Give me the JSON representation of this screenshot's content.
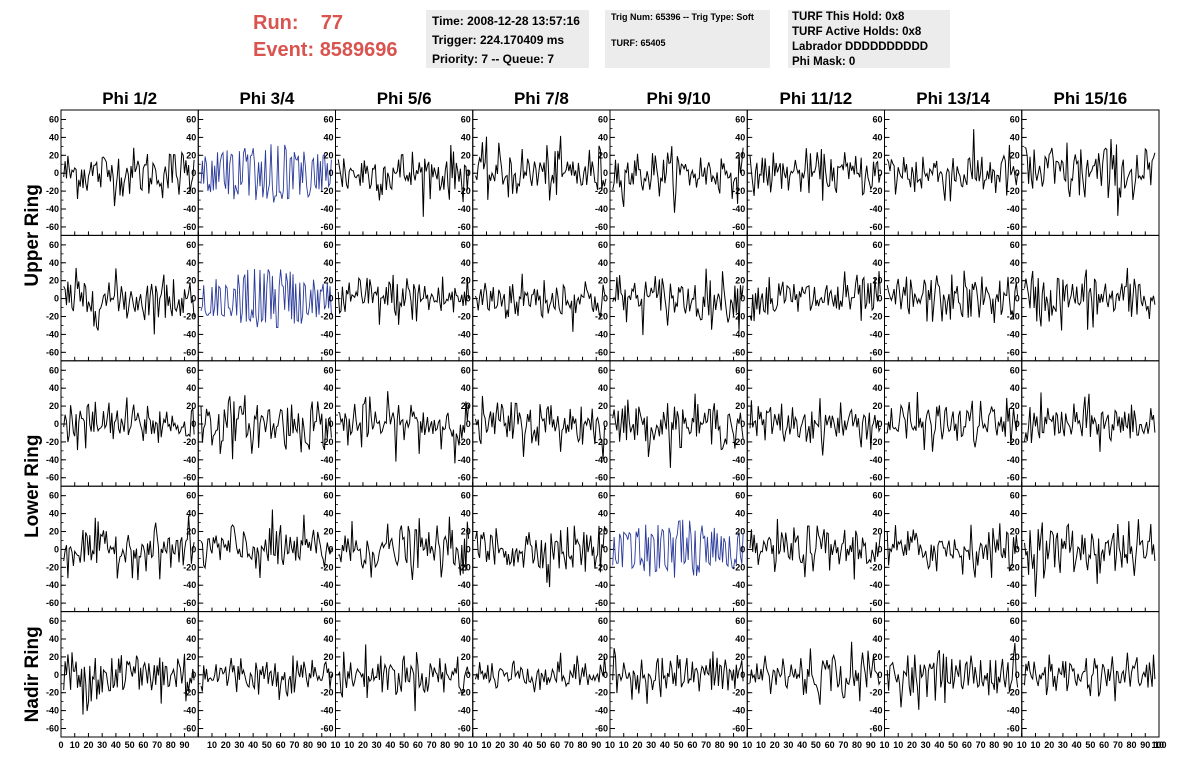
{
  "header": {
    "run_label": "Run:",
    "run_value": "77",
    "event_label": "Event:",
    "event_value": "8589696",
    "time": "Time: 2008-12-28 13:57:16",
    "trigger": "Trigger: 224.170409 ms",
    "priority": "Priority: 7 -- Queue: 7",
    "trig_num": "Trig Num: 65396 -- Trig Type: Soft",
    "turf": "TURF: 65405",
    "turf_this_hold": "TURF This Hold: 0x8",
    "turf_active_holds": "TURF Active Holds: 0x8",
    "labrador": "Labrador DDDDDDDDDD",
    "phi_mask": "Phi Mask: 0"
  },
  "colors": {
    "header_red": "#d9534f",
    "trace_black": "#000000",
    "trace_blue": "#2a3a9a",
    "box_bg": "#ececec"
  },
  "chart_data": {
    "type": "line",
    "columns": [
      "Phi 1/2",
      "Phi 3/4",
      "Phi 5/6",
      "Phi 7/8",
      "Phi 9/10",
      "Phi 11/12",
      "Phi 13/14",
      "Phi 15/16"
    ],
    "rows": [
      "Upper Ring",
      "Upper Ring",
      "Lower Ring",
      "Lower Ring",
      "Nadir Ring"
    ],
    "row_labels": [
      {
        "label": "Upper Ring",
        "span_rows": [
          0,
          1
        ]
      },
      {
        "label": "Lower Ring",
        "span_rows": [
          2,
          3
        ]
      },
      {
        "label": "Nadir Ring",
        "span_rows": [
          4,
          4
        ]
      }
    ],
    "xlim": [
      0,
      100
    ],
    "ylim": [
      -65,
      65
    ],
    "x_ticks": [
      0,
      10,
      20,
      30,
      40,
      50,
      60,
      70,
      80,
      90,
      100
    ],
    "x_tick_labels_first_panel": [
      "0",
      "10",
      "20",
      "30",
      "40",
      "50",
      "60",
      "70",
      "80",
      "90"
    ],
    "x_tick_labels_other_panels": [
      "10",
      "20",
      "30",
      "40",
      "50",
      "60",
      "70",
      "80",
      "90",
      "10"
    ],
    "x_tick_label_last_panel_end": "100",
    "y_ticks": [
      -60,
      -40,
      -20,
      0,
      20,
      40,
      60
    ],
    "y_tick_labels": [
      "-60",
      "-40",
      "-20",
      "0",
      "20",
      "40",
      "60"
    ],
    "samples_per_trace": 96,
    "typical_amplitude": [
      [
        14,
        14,
        14,
        15,
        13,
        12,
        15,
        18
      ],
      [
        14,
        14,
        14,
        13,
        14,
        13,
        14,
        16
      ],
      [
        13,
        15,
        14,
        14,
        13,
        12,
        13,
        13
      ],
      [
        13,
        15,
        14,
        14,
        12,
        13,
        13,
        16
      ],
      [
        17,
        11,
        12,
        9,
        12,
        14,
        13,
        12
      ]
    ],
    "highlighted_traces": [
      {
        "row": 0,
        "col": 1,
        "color": "blue"
      },
      {
        "row": 1,
        "col": 1,
        "color": "blue"
      },
      {
        "row": 3,
        "col": 4,
        "color": "blue"
      }
    ]
  }
}
